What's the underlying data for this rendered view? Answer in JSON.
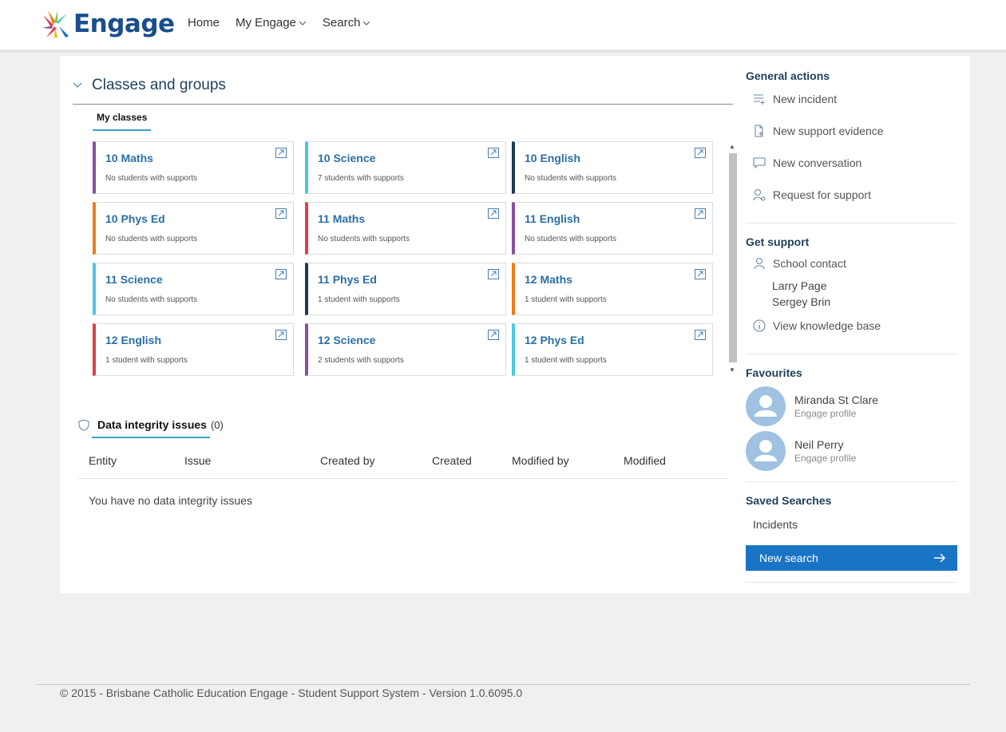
{
  "header": {
    "logo_text": "Engage",
    "nav": [
      {
        "label": "Home",
        "has_dropdown": false
      },
      {
        "label": "My Engage",
        "has_dropdown": true
      },
      {
        "label": "Search",
        "has_dropdown": true
      }
    ]
  },
  "classes": {
    "title": "Classes and groups",
    "tab": "My classes",
    "cards": [
      {
        "title": "10 Maths",
        "subtitle": "No students with supports",
        "color": "#8a4fa0"
      },
      {
        "title": "10 Science",
        "subtitle": "7 students with supports",
        "color": "#4cc6e4"
      },
      {
        "title": "10 English",
        "subtitle": "No students with supports",
        "color": "#1a3a5a"
      },
      {
        "title": "10 Phys Ed",
        "subtitle": "No students with supports",
        "color": "#f07a1a"
      },
      {
        "title": "11 Maths",
        "subtitle": "No students with supports",
        "color": "#e0404a"
      },
      {
        "title": "11 English",
        "subtitle": "No students with supports",
        "color": "#8a4fa0"
      },
      {
        "title": "11 Science",
        "subtitle": "No students with supports",
        "color": "#4cc6e4"
      },
      {
        "title": "11 Phys Ed",
        "subtitle": "1 student with supports",
        "color": "#1a3a5a"
      },
      {
        "title": "12 Maths",
        "subtitle": "1 student with supports",
        "color": "#f07a1a"
      },
      {
        "title": "12 English",
        "subtitle": "1 student with supports",
        "color": "#e0404a"
      },
      {
        "title": "12 Science",
        "subtitle": "2 students with supports",
        "color": "#8a4fa0"
      },
      {
        "title": "12 Phys Ed",
        "subtitle": "1 student with supports",
        "color": "#4cc6e4"
      }
    ]
  },
  "data_integrity": {
    "title": "Data integrity issues",
    "count": "(0)",
    "columns": [
      "Entity",
      "Issue",
      "Created by",
      "Created",
      "Modified by",
      "Modified"
    ],
    "empty_message": "You have no data integrity issues"
  },
  "sidebar": {
    "general_actions": {
      "title": "General actions",
      "items": [
        {
          "label": "New incident",
          "icon": "list-add-icon"
        },
        {
          "label": "New support evidence",
          "icon": "document-add-icon"
        },
        {
          "label": "New conversation",
          "icon": "chat-icon"
        },
        {
          "label": "Request for support",
          "icon": "person-help-icon"
        }
      ]
    },
    "get_support": {
      "title": "Get support",
      "school_contact_label": "School contact",
      "contacts": [
        "Larry Page",
        "Sergey Brin"
      ],
      "knowledge_base_label": "View knowledge base"
    },
    "favourites": {
      "title": "Favourites",
      "items": [
        {
          "name": "Miranda St Clare",
          "subtitle": "Engage profile"
        },
        {
          "name": "Neil Perry",
          "subtitle": "Engage profile"
        }
      ]
    },
    "saved_searches": {
      "title": "Saved Searches",
      "items": [
        "Incidents"
      ],
      "button_label": "New search"
    }
  },
  "footer": {
    "text": "© 2015 - Brisbane Catholic Education Engage - Student Support System - Version 1.0.6095.0"
  },
  "colors": {
    "brand": "#1a4e8c",
    "accent": "#1a74c6",
    "tab_underline": "#3aa0c8"
  }
}
